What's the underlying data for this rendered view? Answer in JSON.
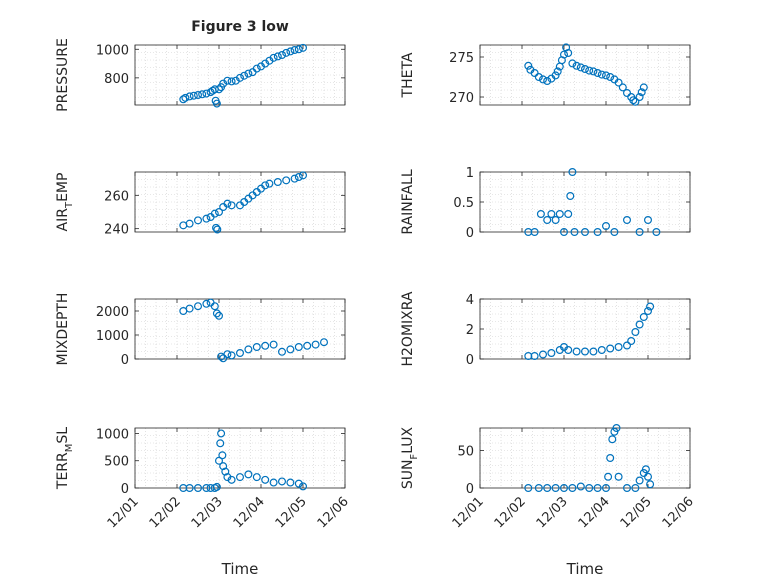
{
  "figure": {
    "title": "Figure 3 low",
    "xlabel": "Time"
  },
  "x_ticks": [
    "12/01",
    "12/02",
    "12/03",
    "12/04",
    "12/05",
    "12/06"
  ],
  "marker_color": "#0072BD",
  "chart_data": [
    {
      "type": "scatter",
      "ylabel_main": "PRESSURE",
      "ylabel_sub": "",
      "ylim": [
        610,
        1030
      ],
      "yticks": [
        800,
        1000
      ],
      "points": [
        [
          1.15,
          650
        ],
        [
          1.2,
          660
        ],
        [
          1.3,
          670
        ],
        [
          1.4,
          675
        ],
        [
          1.5,
          680
        ],
        [
          1.6,
          685
        ],
        [
          1.7,
          690
        ],
        [
          1.8,
          700
        ],
        [
          1.85,
          710
        ],
        [
          1.9,
          720
        ],
        [
          1.92,
          640
        ],
        [
          1.95,
          620
        ],
        [
          2.0,
          720
        ],
        [
          2.05,
          735
        ],
        [
          2.1,
          760
        ],
        [
          2.2,
          780
        ],
        [
          2.3,
          775
        ],
        [
          2.4,
          780
        ],
        [
          2.5,
          800
        ],
        [
          2.6,
          815
        ],
        [
          2.7,
          830
        ],
        [
          2.8,
          840
        ],
        [
          2.9,
          865
        ],
        [
          3.0,
          880
        ],
        [
          3.1,
          900
        ],
        [
          3.2,
          920
        ],
        [
          3.3,
          940
        ],
        [
          3.4,
          950
        ],
        [
          3.5,
          960
        ],
        [
          3.6,
          975
        ],
        [
          3.7,
          985
        ],
        [
          3.8,
          995
        ],
        [
          3.9,
          1000
        ],
        [
          4.0,
          1010
        ]
      ]
    },
    {
      "type": "scatter",
      "ylabel_main": "THETA",
      "ylabel_sub": "",
      "ylim": [
        269,
        276.5
      ],
      "yticks": [
        270,
        275
      ],
      "points": [
        [
          1.15,
          273.9
        ],
        [
          1.2,
          273.4
        ],
        [
          1.3,
          273
        ],
        [
          1.4,
          272.5
        ],
        [
          1.5,
          272.2
        ],
        [
          1.6,
          272
        ],
        [
          1.7,
          272.3
        ],
        [
          1.8,
          272.7
        ],
        [
          1.85,
          273.2
        ],
        [
          1.9,
          273.8
        ],
        [
          1.95,
          274.6
        ],
        [
          2.0,
          275.3
        ],
        [
          2.05,
          276.2
        ],
        [
          2.1,
          275.5
        ],
        [
          2.2,
          274.2
        ],
        [
          2.3,
          273.9
        ],
        [
          2.4,
          273.7
        ],
        [
          2.5,
          273.5
        ],
        [
          2.6,
          273.3
        ],
        [
          2.7,
          273.2
        ],
        [
          2.8,
          273
        ],
        [
          2.9,
          272.8
        ],
        [
          3.0,
          272.7
        ],
        [
          3.1,
          272.5
        ],
        [
          3.2,
          272.2
        ],
        [
          3.3,
          271.8
        ],
        [
          3.4,
          271.2
        ],
        [
          3.5,
          270.5
        ],
        [
          3.6,
          270
        ],
        [
          3.65,
          269.6
        ],
        [
          3.7,
          269.4
        ],
        [
          3.8,
          270
        ],
        [
          3.85,
          270.6
        ],
        [
          3.9,
          271.2
        ]
      ]
    },
    {
      "type": "scatter",
      "ylabel_main": "AIR",
      "ylabel_sub": "T",
      "ylabel_rest": "EMP",
      "ylim": [
        238,
        274
      ],
      "yticks": [
        240,
        260
      ],
      "points": [
        [
          1.15,
          242
        ],
        [
          1.3,
          243
        ],
        [
          1.5,
          245
        ],
        [
          1.7,
          246
        ],
        [
          1.8,
          247
        ],
        [
          1.9,
          249
        ],
        [
          1.93,
          240.5
        ],
        [
          1.96,
          239.5
        ],
        [
          2.0,
          250
        ],
        [
          2.1,
          253
        ],
        [
          2.2,
          255
        ],
        [
          2.3,
          254
        ],
        [
          2.5,
          254
        ],
        [
          2.6,
          256
        ],
        [
          2.7,
          258
        ],
        [
          2.8,
          260
        ],
        [
          2.9,
          262
        ],
        [
          3.0,
          264
        ],
        [
          3.1,
          266
        ],
        [
          3.2,
          267
        ],
        [
          3.4,
          268
        ],
        [
          3.6,
          269
        ],
        [
          3.8,
          270
        ],
        [
          3.9,
          271
        ],
        [
          4.0,
          272
        ]
      ]
    },
    {
      "type": "scatter",
      "ylabel_main": "RAINFALL",
      "ylabel_sub": "",
      "ylim": [
        0,
        1
      ],
      "yticks": [
        0,
        0.5,
        1
      ],
      "points": [
        [
          1.15,
          0
        ],
        [
          1.3,
          0
        ],
        [
          1.45,
          0.3
        ],
        [
          1.6,
          0.2
        ],
        [
          1.7,
          0.3
        ],
        [
          1.8,
          0.2
        ],
        [
          1.9,
          0.3
        ],
        [
          2.0,
          0
        ],
        [
          2.1,
          0.3
        ],
        [
          2.15,
          0.6
        ],
        [
          2.2,
          1
        ],
        [
          2.25,
          0
        ],
        [
          2.5,
          0
        ],
        [
          2.8,
          0
        ],
        [
          3.0,
          0.1
        ],
        [
          3.2,
          0
        ],
        [
          3.5,
          0.2
        ],
        [
          3.8,
          0
        ],
        [
          4.0,
          0.2
        ],
        [
          4.2,
          0
        ]
      ]
    },
    {
      "type": "scatter",
      "ylabel_main": "MIXDEPTH",
      "ylabel_sub": "",
      "ylim": [
        0,
        2500
      ],
      "yticks": [
        0,
        1000,
        2000
      ],
      "points": [
        [
          1.15,
          2000
        ],
        [
          1.3,
          2100
        ],
        [
          1.5,
          2200
        ],
        [
          1.7,
          2300
        ],
        [
          1.8,
          2350
        ],
        [
          1.9,
          2200
        ],
        [
          1.95,
          1900
        ],
        [
          2.0,
          1800
        ],
        [
          2.05,
          100
        ],
        [
          2.1,
          30
        ],
        [
          2.2,
          200
        ],
        [
          2.3,
          150
        ],
        [
          2.5,
          250
        ],
        [
          2.7,
          400
        ],
        [
          2.9,
          500
        ],
        [
          3.1,
          550
        ],
        [
          3.3,
          600
        ],
        [
          3.5,
          300
        ],
        [
          3.7,
          400
        ],
        [
          3.9,
          500
        ],
        [
          4.1,
          550
        ],
        [
          4.3,
          600
        ],
        [
          4.5,
          700
        ]
      ]
    },
    {
      "type": "scatter",
      "ylabel_main": "H2OMIXRA",
      "ylabel_sub": "",
      "ylim": [
        0,
        4
      ],
      "yticks": [
        0,
        2,
        4
      ],
      "points": [
        [
          1.15,
          0.2
        ],
        [
          1.3,
          0.2
        ],
        [
          1.5,
          0.3
        ],
        [
          1.7,
          0.4
        ],
        [
          1.9,
          0.6
        ],
        [
          2.0,
          0.8
        ],
        [
          2.1,
          0.6
        ],
        [
          2.3,
          0.5
        ],
        [
          2.5,
          0.5
        ],
        [
          2.7,
          0.5
        ],
        [
          2.9,
          0.6
        ],
        [
          3.1,
          0.7
        ],
        [
          3.3,
          0.8
        ],
        [
          3.5,
          0.9
        ],
        [
          3.6,
          1.2
        ],
        [
          3.7,
          1.8
        ],
        [
          3.8,
          2.3
        ],
        [
          3.9,
          2.8
        ],
        [
          4.0,
          3.2
        ],
        [
          4.05,
          3.5
        ]
      ]
    },
    {
      "type": "scatter",
      "ylabel_main": "TERR",
      "ylabel_sub": "M",
      "ylabel_rest": "SL",
      "ylim": [
        0,
        1100
      ],
      "yticks": [
        0,
        500,
        1000
      ],
      "points": [
        [
          1.15,
          0
        ],
        [
          1.3,
          0
        ],
        [
          1.5,
          0
        ],
        [
          1.7,
          0
        ],
        [
          1.8,
          0
        ],
        [
          1.9,
          0
        ],
        [
          1.95,
          20
        ],
        [
          2.0,
          500
        ],
        [
          2.03,
          820
        ],
        [
          2.05,
          1000
        ],
        [
          2.08,
          600
        ],
        [
          2.1,
          400
        ],
        [
          2.15,
          300
        ],
        [
          2.2,
          200
        ],
        [
          2.3,
          150
        ],
        [
          2.5,
          200
        ],
        [
          2.7,
          250
        ],
        [
          2.9,
          200
        ],
        [
          3.1,
          150
        ],
        [
          3.3,
          100
        ],
        [
          3.5,
          120
        ],
        [
          3.7,
          100
        ],
        [
          3.9,
          80
        ],
        [
          4.0,
          30
        ]
      ]
    },
    {
      "type": "scatter",
      "ylabel_main": "SUN",
      "ylabel_sub": "F",
      "ylabel_rest": "LUX",
      "ylim": [
        0,
        80
      ],
      "yticks": [
        0,
        50
      ],
      "points": [
        [
          1.15,
          0
        ],
        [
          1.4,
          0
        ],
        [
          1.6,
          0
        ],
        [
          1.8,
          0
        ],
        [
          2.0,
          0
        ],
        [
          2.2,
          0
        ],
        [
          2.4,
          2
        ],
        [
          2.6,
          0
        ],
        [
          2.8,
          0
        ],
        [
          3.0,
          0
        ],
        [
          3.05,
          15
        ],
        [
          3.1,
          40
        ],
        [
          3.15,
          65
        ],
        [
          3.2,
          75
        ],
        [
          3.25,
          80
        ],
        [
          3.3,
          15
        ],
        [
          3.5,
          0
        ],
        [
          3.7,
          0
        ],
        [
          3.8,
          10
        ],
        [
          3.9,
          20
        ],
        [
          3.95,
          25
        ],
        [
          4.0,
          15
        ],
        [
          4.05,
          5
        ]
      ]
    }
  ]
}
